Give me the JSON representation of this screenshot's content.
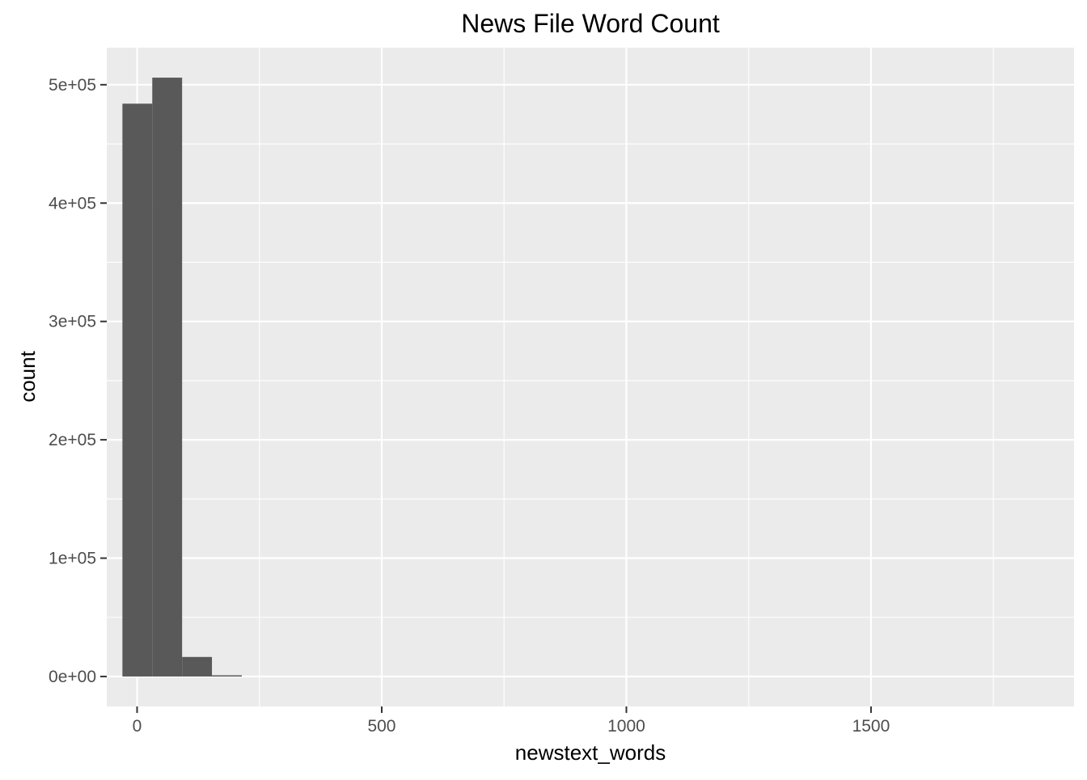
{
  "chart_data": {
    "type": "bar",
    "title": "News File Word Count",
    "xlabel": "newstext_words",
    "ylabel": "count",
    "xlim": [
      -62,
      1915
    ],
    "ylim": [
      -25300,
      531300
    ],
    "x_ticks": [
      {
        "value": 0,
        "label": "0"
      },
      {
        "value": 500,
        "label": "500"
      },
      {
        "value": 1000,
        "label": "1000"
      },
      {
        "value": 1500,
        "label": "1500"
      }
    ],
    "x_minor_ticks": [
      250,
      750,
      1250,
      1750
    ],
    "y_ticks": [
      {
        "value": 0,
        "label": "0e+00"
      },
      {
        "value": 100000,
        "label": "1e+05"
      },
      {
        "value": 200000,
        "label": "2e+05"
      },
      {
        "value": 300000,
        "label": "3e+05"
      },
      {
        "value": 400000,
        "label": "4e+05"
      },
      {
        "value": 500000,
        "label": "5e+05"
      }
    ],
    "y_minor_ticks": [
      50000,
      150000,
      250000,
      350000,
      450000
    ],
    "bins": [
      {
        "x0": -30,
        "x1": 31,
        "count": 484000
      },
      {
        "x0": 31,
        "x1": 92,
        "count": 506000
      },
      {
        "x0": 92,
        "x1": 153,
        "count": 16500
      },
      {
        "x0": 153,
        "x1": 214,
        "count": 1000
      }
    ],
    "grid": true,
    "colors": {
      "panel": "#ebebeb",
      "bar": "#595959",
      "grid": "#ffffff"
    }
  }
}
